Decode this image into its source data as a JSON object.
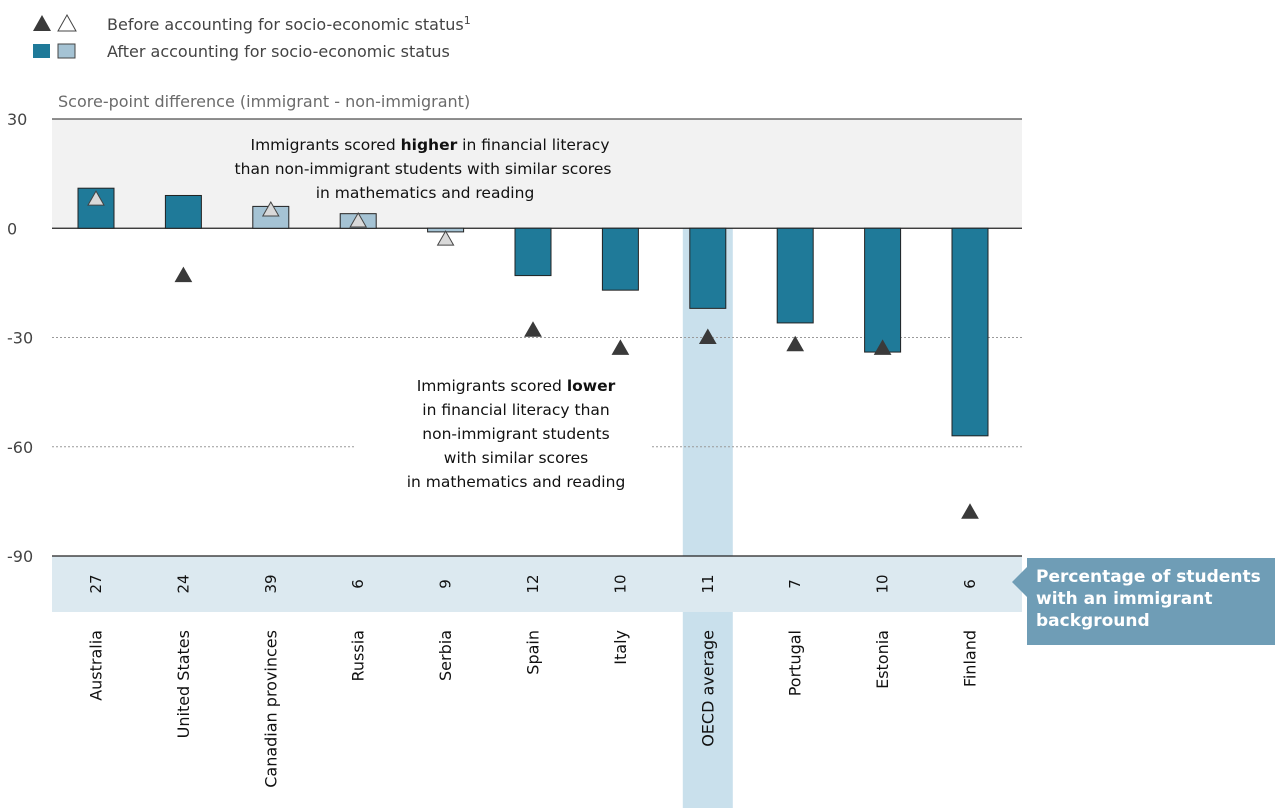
{
  "legend": {
    "before_label": "Before accounting for socio-economic status",
    "before_sup": "1",
    "after_label": "After accounting for socio-economic status"
  },
  "colors": {
    "bar_dark": "#1f7a99",
    "bar_light": "#a5c3d4",
    "triangle_dark": "#3a3a3a",
    "triangle_light": "#d9d9d9",
    "upper_band": "#f2f2f2",
    "highlight_column": "#c9e0ec",
    "pct_band": "#dce9f0",
    "callout": "#6f9db6"
  },
  "annotations": {
    "higher_line1_pre": "Immigrants scored ",
    "higher_line1_bold": "higher",
    "higher_line1_post": " in financial literacy",
    "higher_line2": "than non-immigrant students with similar scores",
    "higher_line3": "in mathematics and reading",
    "lower_line1_pre": "Immigrants scored ",
    "lower_line1_bold": "lower",
    "lower_line2": "in financial literacy than",
    "lower_line3": "non-immigrant students",
    "lower_line4": "with similar scores",
    "lower_line5": "in mathematics and reading"
  },
  "callout": {
    "line1": "Percentage of students",
    "line2": "with an immigrant",
    "line3": "background"
  },
  "chart_data": {
    "type": "bar",
    "ylabel": "Score-point difference (immigrant - non-immigrant)",
    "ylim": [
      -90,
      30
    ],
    "yticks": [
      30,
      0,
      -30,
      -60,
      -90
    ],
    "categories": [
      "Australia",
      "United States",
      "Canadian provinces",
      "Russia",
      "Serbia",
      "Spain",
      "Italy",
      "OECD average",
      "Portugal",
      "Estonia",
      "Finland"
    ],
    "series": [
      {
        "name": "After accounting for socio-economic status",
        "values": [
          11,
          9,
          6,
          4,
          -1,
          -13,
          -17,
          -22,
          -26,
          -34,
          -57
        ],
        "significant": [
          true,
          true,
          false,
          false,
          false,
          true,
          true,
          true,
          true,
          true,
          true
        ]
      },
      {
        "name": "Before accounting for socio-economic status",
        "values": [
          8,
          -13,
          5,
          2,
          -3,
          -28,
          -33,
          -30,
          -32,
          -33,
          -78
        ],
        "significant": [
          false,
          true,
          false,
          false,
          false,
          true,
          true,
          true,
          true,
          true,
          true
        ]
      }
    ],
    "immigrant_pct": [
      "27",
      "24",
      "39",
      "6",
      "9",
      "12",
      "10",
      "11",
      "7",
      "10",
      "6"
    ],
    "highlight_category": "OECD average"
  }
}
